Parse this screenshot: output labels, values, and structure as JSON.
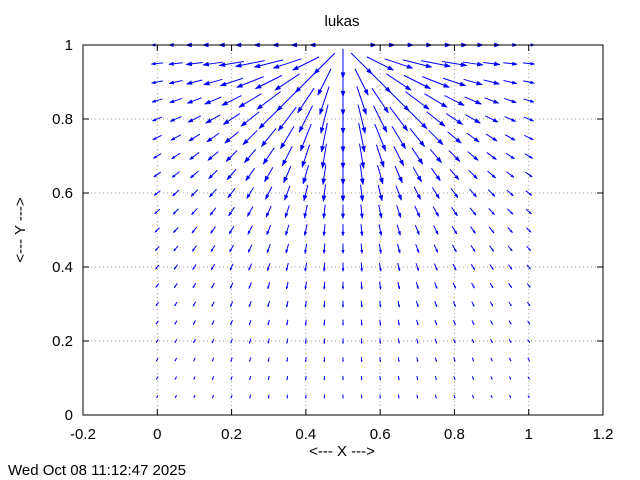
{
  "chart_data": {
    "type": "vector-field",
    "title": "lukas",
    "xlabel": "<--- X --->",
    "ylabel": "<--- Y --->",
    "xlim": [
      -0.2,
      1.2
    ],
    "ylim": [
      0,
      1
    ],
    "xticks": [
      "-0.2",
      "0",
      "0.2",
      "0.4",
      "0.6",
      "0.8",
      "1",
      "1.2"
    ],
    "yticks": [
      "0",
      "0.2",
      "0.4",
      "0.6",
      "0.8",
      "1"
    ],
    "grid": true,
    "grid_style": "dotted",
    "arrow_color": "#0000ff",
    "field": {
      "x_start": 0,
      "x_end": 1,
      "x_count": 21,
      "y_start": 0.05,
      "y_end": 1,
      "y_count": 20,
      "source": [
        0.5,
        1.0
      ],
      "max_length": 0.08
    }
  },
  "timestamp": "Wed Oct 08 11:12:47 2025"
}
